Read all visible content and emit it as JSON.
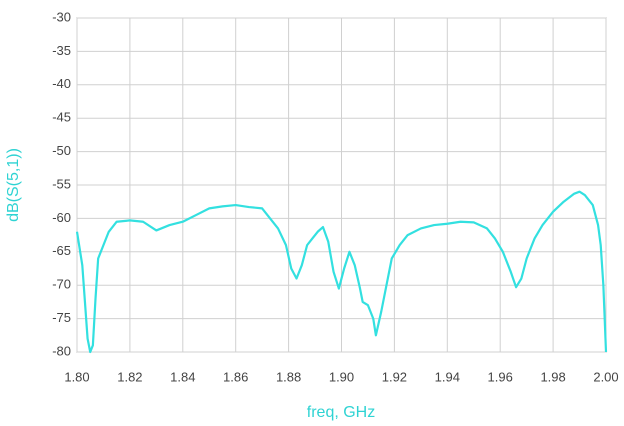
{
  "chart_data": {
    "type": "line",
    "xlabel": "freq, GHz",
    "ylabel": "dB(S(5,1))",
    "x": [
      1.8,
      1.802,
      1.804,
      1.805,
      1.806,
      1.807,
      1.808,
      1.81,
      1.812,
      1.815,
      1.82,
      1.825,
      1.83,
      1.835,
      1.84,
      1.845,
      1.85,
      1.855,
      1.86,
      1.865,
      1.87,
      1.873,
      1.876,
      1.879,
      1.881,
      1.883,
      1.885,
      1.887,
      1.889,
      1.891,
      1.893,
      1.895,
      1.897,
      1.899,
      1.901,
      1.903,
      1.905,
      1.907,
      1.908,
      1.91,
      1.912,
      1.913,
      1.915,
      1.917,
      1.919,
      1.922,
      1.925,
      1.93,
      1.935,
      1.94,
      1.945,
      1.95,
      1.955,
      1.958,
      1.961,
      1.964,
      1.966,
      1.968,
      1.97,
      1.973,
      1.976,
      1.98,
      1.984,
      1.988,
      1.99,
      1.992,
      1.995,
      1.997,
      1.998,
      1.999,
      2.0
    ],
    "values": [
      -62,
      -67,
      -78,
      -80,
      -79,
      -72,
      -66,
      -64,
      -62,
      -60.5,
      -60.3,
      -60.5,
      -61.8,
      -61,
      -60.5,
      -59.5,
      -58.5,
      -58.2,
      -58,
      -58.3,
      -58.5,
      -60,
      -61.5,
      -64,
      -67.5,
      -69,
      -67,
      -64,
      -63,
      -62,
      -61.3,
      -63.5,
      -68,
      -70.5,
      -67.5,
      -65,
      -67,
      -70.5,
      -72.5,
      -73,
      -75,
      -77.5,
      -74,
      -70,
      -66,
      -64,
      -62.5,
      -61.5,
      -61,
      -60.8,
      -60.5,
      -60.6,
      -61.5,
      -63,
      -65,
      -68,
      -70.3,
      -69,
      -66,
      -63,
      -61,
      -59,
      -57.5,
      -56.3,
      -56,
      -56.5,
      -58,
      -61,
      -64,
      -70,
      -80
    ],
    "color": "#33e0e0",
    "xlim": [
      1.8,
      2.0
    ],
    "xticks": [
      {
        "value": 1.8,
        "label": "1.80"
      },
      {
        "value": 1.82,
        "label": "1.82"
      },
      {
        "value": 1.84,
        "label": "1.84"
      },
      {
        "value": 1.86,
        "label": "1.86"
      },
      {
        "value": 1.88,
        "label": "1.88"
      },
      {
        "value": 1.9,
        "label": "1.90"
      },
      {
        "value": 1.92,
        "label": "1.92"
      },
      {
        "value": 1.94,
        "label": "1.94"
      },
      {
        "value": 1.96,
        "label": "1.96"
      },
      {
        "value": 1.98,
        "label": "1.98"
      },
      {
        "value": 2.0,
        "label": "2.00"
      }
    ],
    "ylim": [
      -80,
      -30
    ],
    "yticks": [
      -80,
      -75,
      -70,
      -65,
      -60,
      -55,
      -50,
      -45,
      -40,
      -35,
      -30
    ],
    "grid": true
  }
}
